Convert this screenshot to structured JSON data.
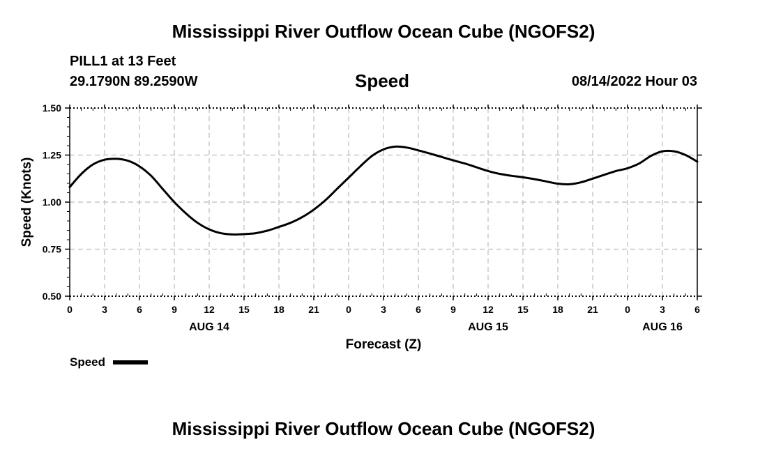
{
  "header": {
    "top_title": "Mississippi River Outflow Ocean Cube (NGOFS2)",
    "station": "PILL1 at 13 Feet",
    "coordinates": "29.1790N  89.2590W",
    "variable": "Speed",
    "datetime": "08/14/2022 Hour 03"
  },
  "legend": {
    "label": "Speed"
  },
  "footer": {
    "bottom_title": "Mississippi River Outflow Ocean Cube (NGOFS2)"
  },
  "colors": {
    "line": "#000000",
    "grid": "#bbbbbb",
    "background": "#ffffff"
  },
  "chart_data": {
    "type": "line",
    "title": "Speed",
    "xlabel": "Forecast (Z)",
    "ylabel": "Speed (Knots)",
    "xlim": [
      0,
      54
    ],
    "ylim": [
      0.5,
      1.5
    ],
    "grid": true,
    "legend_position": "bottom-left",
    "y_ticks": [
      0.5,
      0.75,
      1.0,
      1.25,
      1.5
    ],
    "y_tick_labels": [
      "0.50",
      "0.75",
      "1.00",
      "1.25",
      "1.50"
    ],
    "x_ticks": [
      0,
      3,
      6,
      9,
      12,
      15,
      18,
      21,
      24,
      27,
      30,
      33,
      36,
      39,
      42,
      45,
      48,
      51,
      54
    ],
    "x_tick_labels": [
      "0",
      "3",
      "6",
      "9",
      "12",
      "15",
      "18",
      "21",
      "0",
      "3",
      "6",
      "9",
      "12",
      "15",
      "18",
      "21",
      "0",
      "3",
      "6"
    ],
    "date_labels": [
      {
        "x": 12,
        "label": "AUG 14"
      },
      {
        "x": 36,
        "label": "AUG 15"
      },
      {
        "x": 51,
        "label": "AUG 16"
      }
    ],
    "series": [
      {
        "name": "Speed",
        "x": [
          0,
          1,
          2,
          3,
          4,
          5,
          6,
          7,
          8,
          9,
          10,
          11,
          12,
          13,
          14,
          15,
          16,
          17,
          18,
          19,
          20,
          21,
          22,
          23,
          24,
          25,
          26,
          27,
          28,
          29,
          30,
          31,
          32,
          33,
          34,
          35,
          36,
          37,
          38,
          39,
          40,
          41,
          42,
          43,
          44,
          45,
          46,
          47,
          48,
          49,
          50,
          51,
          52,
          53,
          54
        ],
        "values": [
          1.08,
          1.15,
          1.2,
          1.225,
          1.23,
          1.22,
          1.19,
          1.14,
          1.07,
          1.0,
          0.94,
          0.89,
          0.855,
          0.835,
          0.828,
          0.83,
          0.835,
          0.848,
          0.868,
          0.89,
          0.92,
          0.96,
          1.01,
          1.07,
          1.13,
          1.19,
          1.245,
          1.28,
          1.295,
          1.29,
          1.275,
          1.258,
          1.24,
          1.222,
          1.205,
          1.185,
          1.165,
          1.15,
          1.14,
          1.132,
          1.122,
          1.11,
          1.098,
          1.095,
          1.105,
          1.125,
          1.145,
          1.165,
          1.18,
          1.205,
          1.245,
          1.27,
          1.27,
          1.25,
          1.215
        ]
      }
    ]
  }
}
